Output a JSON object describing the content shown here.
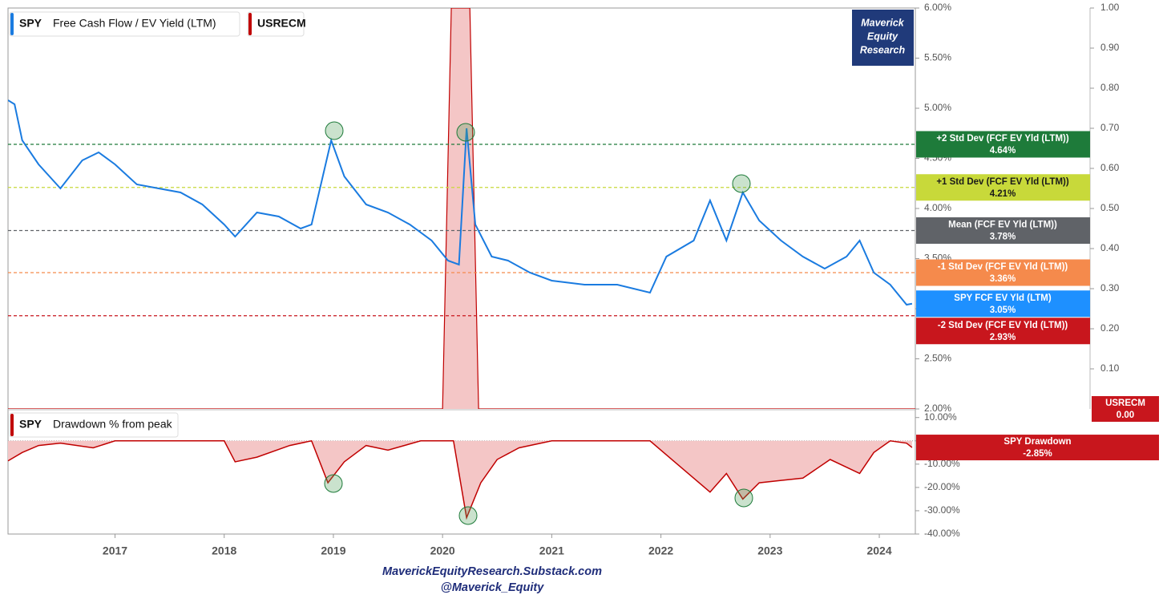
{
  "chart_data": [
    {
      "type": "line",
      "legend": [
        {
          "ticker": "SPY",
          "name": "Free Cash Flow / EV Yield (LTM)",
          "color": "#1a7be0"
        },
        {
          "name": "USRECM",
          "color": "#c00000"
        }
      ],
      "xlim": [
        2016.02,
        2024.33
      ],
      "xticks": [
        2017,
        2018,
        2019,
        2020,
        2021,
        2022,
        2023,
        2024
      ],
      "ylim": [
        2,
        6
      ],
      "yticks": [
        {
          "value": 2,
          "label": "2.00%"
        },
        {
          "value": 2.5,
          "label": "2.50%"
        },
        {
          "value": 3,
          "label": "3.00%"
        },
        {
          "value": 3.5,
          "label": "3.50%"
        },
        {
          "value": 4,
          "label": "4.00%"
        },
        {
          "value": 4.5,
          "label": "4.50%"
        },
        {
          "value": 5,
          "label": "5.00%"
        },
        {
          "value": 5.5,
          "label": "5.50%"
        },
        {
          "value": 6,
          "label": "6.00%"
        }
      ],
      "y2lim": [
        0,
        1
      ],
      "y2ticks": [
        {
          "value": 0.1,
          "label": "0.10"
        },
        {
          "value": 0.2,
          "label": "0.20"
        },
        {
          "value": 0.3,
          "label": "0.30"
        },
        {
          "value": 0.4,
          "label": "0.40"
        },
        {
          "value": 0.5,
          "label": "0.50"
        },
        {
          "value": 0.6,
          "label": "0.60"
        },
        {
          "value": 0.7,
          "label": "0.70"
        },
        {
          "value": 0.8,
          "label": "0.80"
        },
        {
          "value": 0.9,
          "label": "0.90"
        },
        {
          "value": 1,
          "label": "1.00"
        }
      ],
      "series": [
        {
          "name": "SPY FCF EV Yld (LTM)",
          "color": "#1a7be0",
          "value_label": "3.05%",
          "x": [
            2016.02,
            2016.08,
            2016.15,
            2016.3,
            2016.5,
            2016.7,
            2016.85,
            2017.0,
            2017.2,
            2017.4,
            2017.6,
            2017.8,
            2018.0,
            2018.1,
            2018.3,
            2018.5,
            2018.7,
            2018.8,
            2018.98,
            2019.1,
            2019.3,
            2019.5,
            2019.7,
            2019.9,
            2020.05,
            2020.15,
            2020.22,
            2020.3,
            2020.45,
            2020.6,
            2020.8,
            2021.0,
            2021.3,
            2021.6,
            2021.9,
            2022.05,
            2022.3,
            2022.45,
            2022.6,
            2022.75,
            2022.9,
            2023.1,
            2023.3,
            2023.5,
            2023.7,
            2023.82,
            2023.95,
            2024.1,
            2024.25,
            2024.3
          ],
          "values": [
            5.08,
            5.04,
            4.68,
            4.44,
            4.2,
            4.48,
            4.56,
            4.44,
            4.24,
            4.2,
            4.16,
            4.04,
            3.84,
            3.72,
            3.96,
            3.92,
            3.8,
            3.84,
            4.68,
            4.32,
            4.04,
            3.96,
            3.84,
            3.68,
            3.48,
            3.44,
            4.8,
            3.84,
            3.52,
            3.48,
            3.36,
            3.28,
            3.24,
            3.24,
            3.16,
            3.52,
            3.68,
            4.08,
            3.68,
            4.16,
            3.88,
            3.68,
            3.52,
            3.4,
            3.52,
            3.68,
            3.36,
            3.24,
            3.04,
            3.05
          ]
        },
        {
          "name": "USRECM",
          "color": "#c00000",
          "axis": "y2",
          "value_label": "0.00",
          "x": [
            2016.02,
            2020.0,
            2020.08,
            2020.25,
            2020.33,
            2024.33
          ],
          "values": [
            0,
            0,
            1,
            1,
            0,
            0
          ]
        }
      ],
      "reference_lines": [
        {
          "label": "+2 Std Dev (FCF EV Yld (LTM))",
          "value": 4.64,
          "value_label": "4.64%",
          "color": "#1e7b3a",
          "text_color": "#ffffff"
        },
        {
          "label": "+1 Std Dev (FCF EV Yld (LTM))",
          "value": 4.21,
          "value_label": "4.21%",
          "color": "#c8d93a",
          "text_color": "#1a1a1a"
        },
        {
          "label": "Mean (FCF EV Yld (LTM))",
          "value": 3.78,
          "value_label": "3.78%",
          "color": "#606368",
          "text_color": "#ffffff"
        },
        {
          "label": "-1 Std Dev (FCF EV Yld (LTM))",
          "value": 3.36,
          "value_label": "3.36%",
          "color": "#f58a4c",
          "text_color": "#ffffff"
        },
        {
          "label": "-2 Std Dev (FCF EV Yld (LTM))",
          "value": 2.93,
          "value_label": "2.93%",
          "color": "#c8161d",
          "text_color": "#ffffff"
        }
      ]
    },
    {
      "type": "area",
      "legend": [
        {
          "ticker": "SPY",
          "name": "Drawdown % from peak",
          "color": "#c00000"
        }
      ],
      "ylim": [
        -40,
        13
      ],
      "yticks": [
        {
          "value": -40,
          "label": "-40.00%"
        },
        {
          "value": -30,
          "label": "-30.00%"
        },
        {
          "value": -20,
          "label": "-20.00%"
        },
        {
          "value": -10,
          "label": "-10.00%"
        },
        {
          "value": 0,
          "label": "0.00%"
        },
        {
          "value": 10,
          "label": "10.00%"
        }
      ],
      "series": [
        {
          "name": "SPY Drawdown",
          "color": "#c00000",
          "value_label": "-2.85%",
          "x": [
            2016.02,
            2016.15,
            2016.3,
            2016.5,
            2016.8,
            2017.0,
            2017.5,
            2018.0,
            2018.1,
            2018.3,
            2018.6,
            2018.8,
            2018.95,
            2019.1,
            2019.3,
            2019.5,
            2019.8,
            2020.1,
            2020.22,
            2020.35,
            2020.5,
            2020.7,
            2021.0,
            2021.5,
            2021.9,
            2022.1,
            2022.45,
            2022.6,
            2022.75,
            2022.9,
            2023.1,
            2023.3,
            2023.55,
            2023.82,
            2023.95,
            2024.1,
            2024.25,
            2024.3
          ],
          "values": [
            -8.6,
            -5,
            -2,
            -1,
            -3,
            0,
            0,
            0,
            -9,
            -7,
            -2,
            0,
            -18,
            -9,
            -2,
            -4,
            0,
            0,
            -33,
            -18,
            -8,
            -3,
            0,
            0,
            0,
            -8,
            -22,
            -14,
            -25,
            -18,
            -17,
            -16,
            -8,
            -14,
            -5,
            0,
            -1,
            -2.85
          ]
        }
      ]
    }
  ],
  "watermark": [
    "Maverick",
    "Equity",
    "Research"
  ],
  "footer": [
    "MaverickEquityResearch.Substack.com",
    "@Maverick_Equity"
  ]
}
